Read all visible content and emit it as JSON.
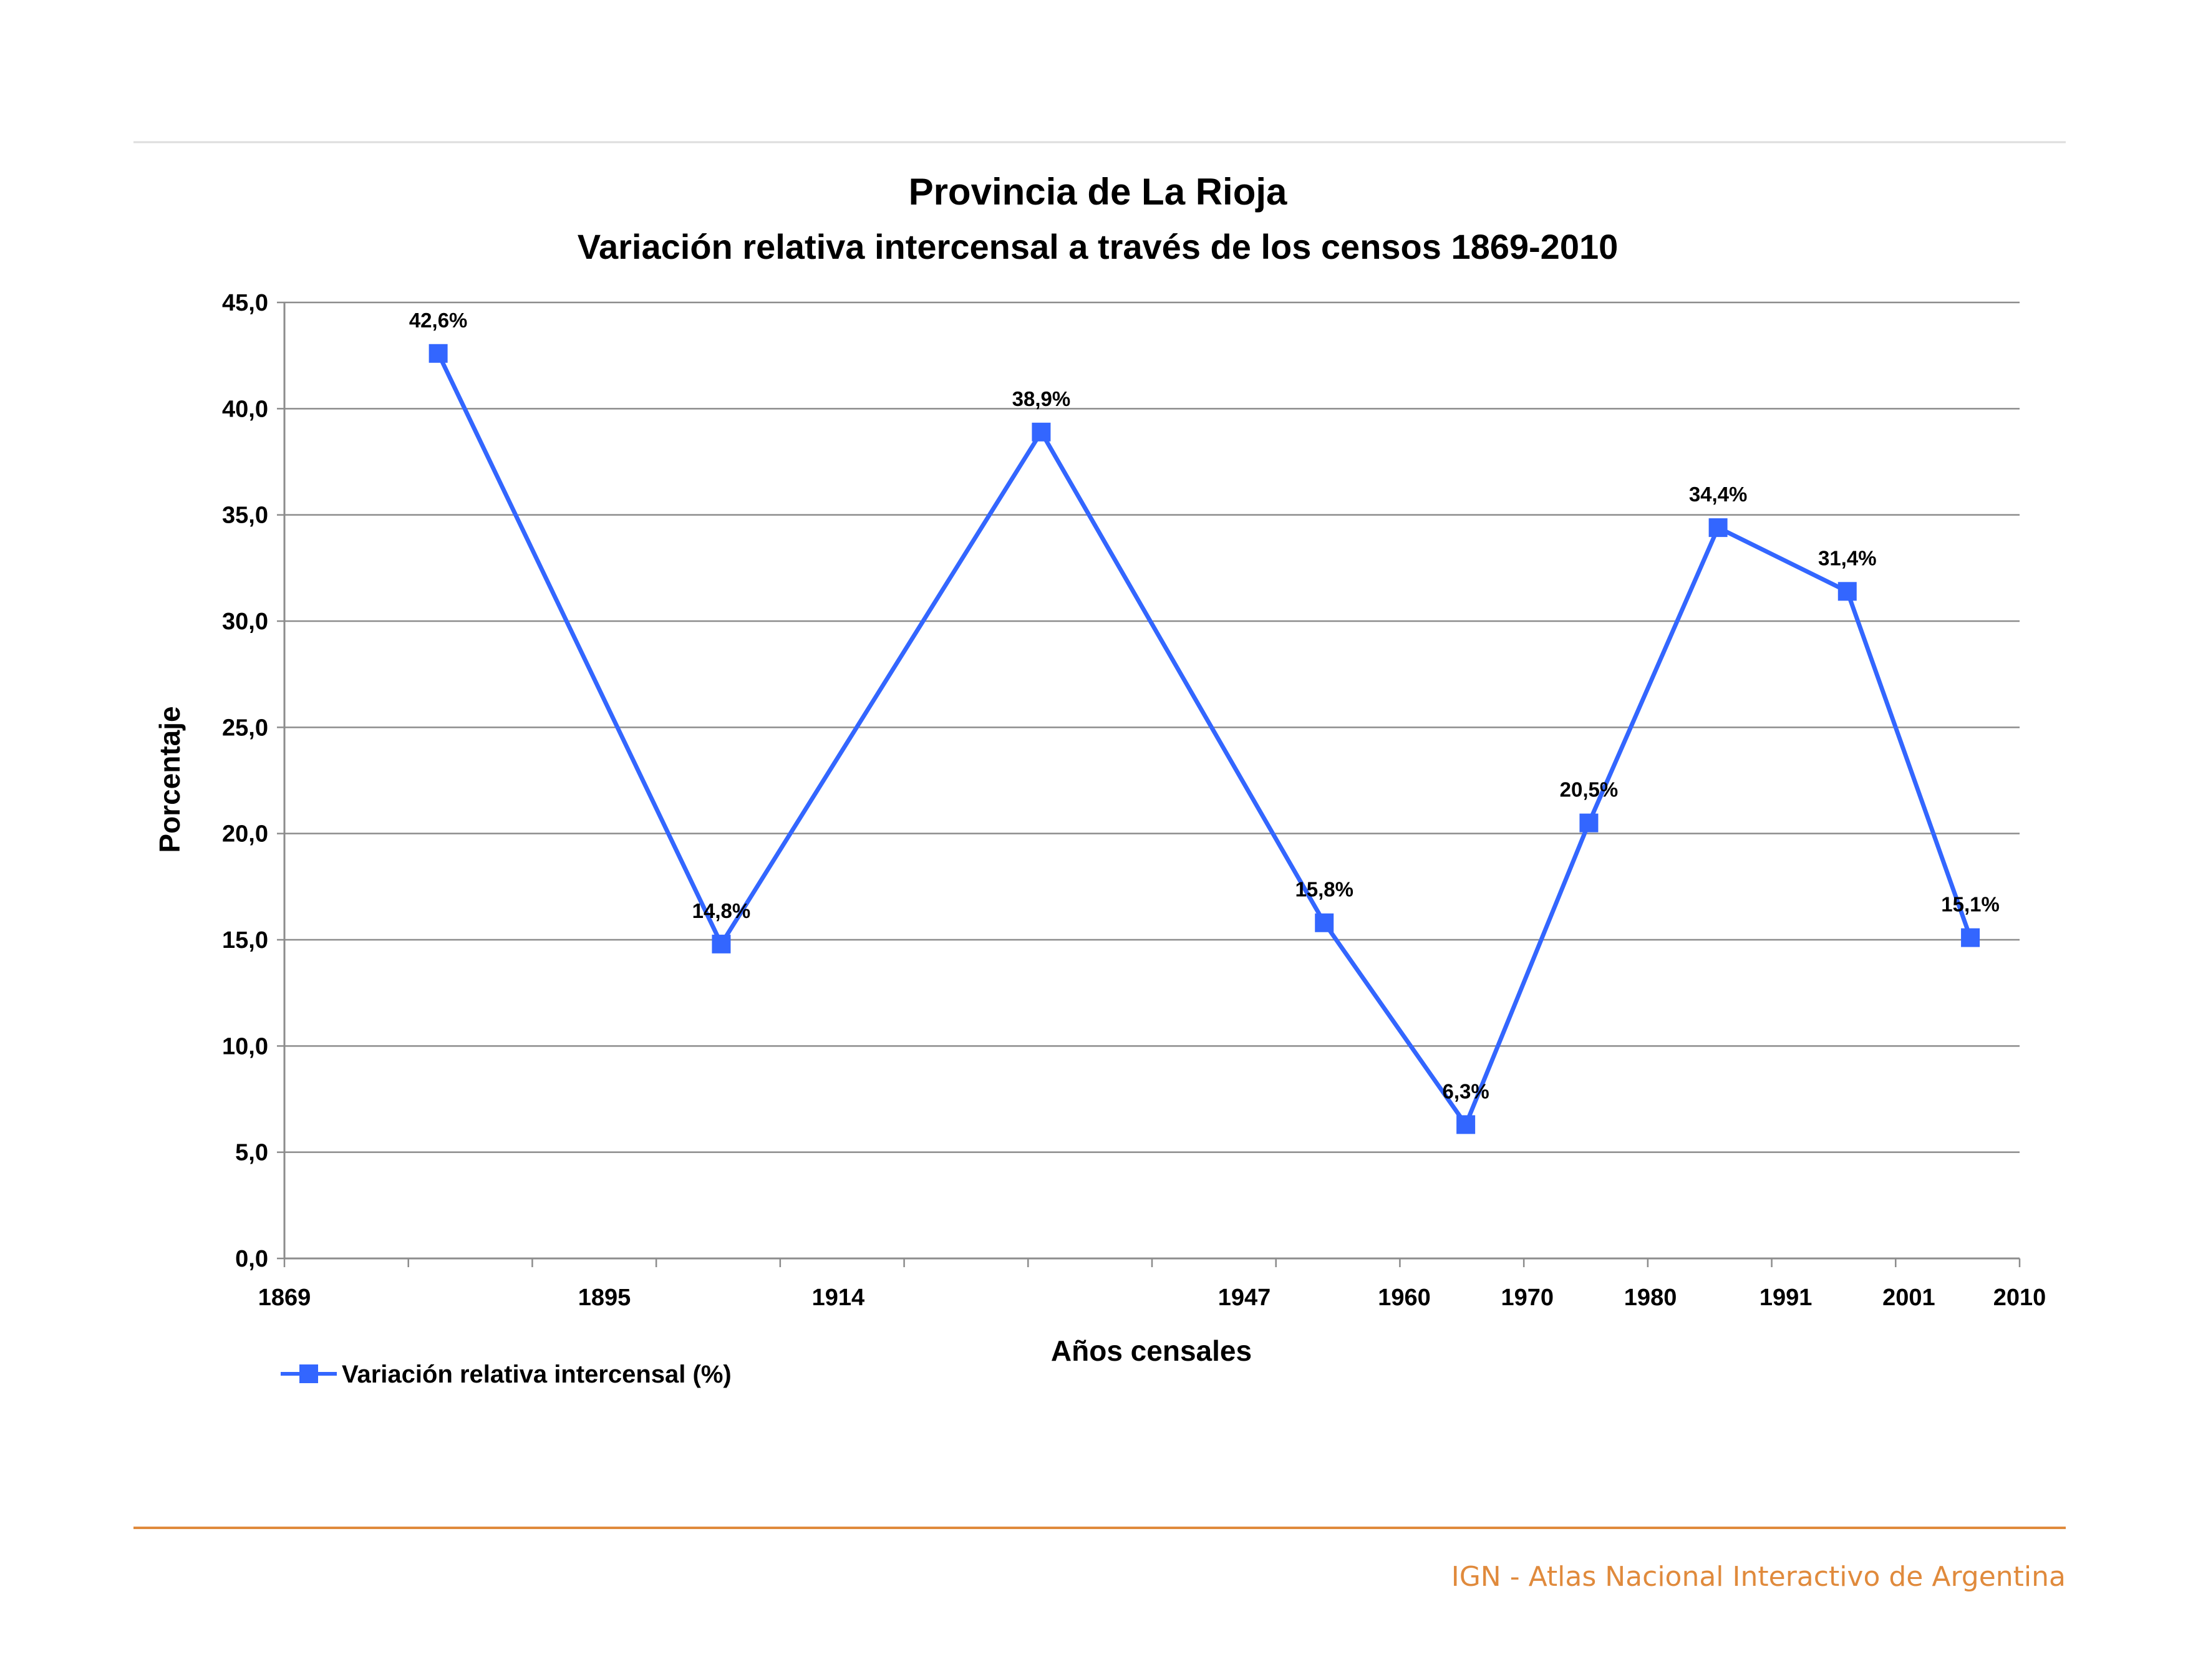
{
  "colors": {
    "series": "#3366FF",
    "grid": "#8C8C8C",
    "axis": "#8C8C8C",
    "top_rule": "#DDDDDD",
    "footer_rule": "#E08A3C",
    "footer_text": "#E08A3C"
  },
  "footer": {
    "text": "IGN - Atlas Nacional Interactivo de Argentina"
  },
  "chart_data": {
    "type": "line",
    "title": "Provincia de La Rioja",
    "subtitle": "Variación relativa intercensal a través de los censos 1869-2010",
    "xlabel": "Años censales",
    "ylabel": "Porcentaje",
    "x_ticks": [
      "1869",
      "1895",
      "1914",
      "1947",
      "1960",
      "1970",
      "1980",
      "1991",
      "2001",
      "2010"
    ],
    "xlim": [
      1869,
      2010
    ],
    "ylim": [
      0,
      45
    ],
    "y_step": 5,
    "y_ticks": [
      "0,0",
      "5,0",
      "10,0",
      "15,0",
      "20,0",
      "25,0",
      "30,0",
      "35,0",
      "40,0",
      "45,0"
    ],
    "grid": true,
    "legend": "bottom-left",
    "series": [
      {
        "name": "Variación relativa intercensal (%)",
        "marker": "square",
        "x": [
          1881.5,
          1904.5,
          1930.5,
          1953.5,
          1965,
          1975,
          1985.5,
          1996,
          2006
        ],
        "values": [
          42.6,
          14.8,
          38.9,
          15.8,
          6.3,
          20.5,
          34.4,
          31.4,
          15.1
        ],
        "labels": [
          "42,6%",
          "14,8%",
          "38,9%",
          "15,8%",
          "6,3%",
          "20,5%",
          "34,4%",
          "31,4%",
          "15,1%"
        ]
      }
    ]
  }
}
